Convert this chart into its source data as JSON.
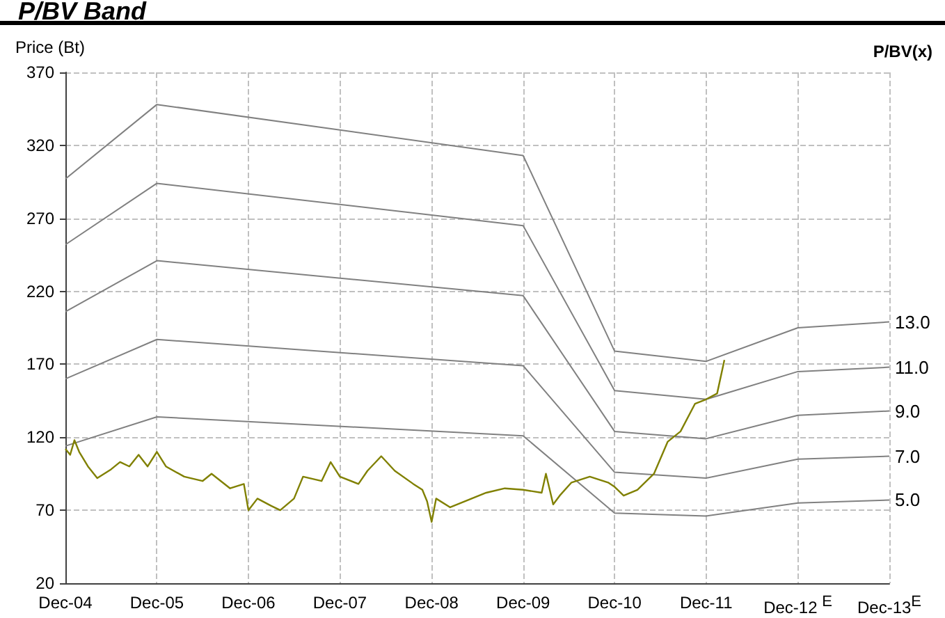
{
  "chart_data": {
    "type": "line",
    "title": "P/BV Band",
    "ylabel": "Price (Bt)",
    "legend_title": "P/BV(x)",
    "xlim": [
      "2004-12",
      "2013-12"
    ],
    "xticks": [
      {
        "value": "2004-12",
        "label": "Dec-04"
      },
      {
        "value": "2005-12",
        "label": "Dec-05"
      },
      {
        "value": "2006-12",
        "label": "Dec-06"
      },
      {
        "value": "2007-12",
        "label": "Dec-07"
      },
      {
        "value": "2008-12",
        "label": "Dec-08"
      },
      {
        "value": "2009-12",
        "label": "Dec-09"
      },
      {
        "value": "2010-12",
        "label": "Dec-10"
      },
      {
        "value": "2011-12",
        "label": "Dec-11"
      },
      {
        "value": "2012-12",
        "label": "Dec-12 $^{E}$"
      },
      {
        "value": "2013-12",
        "label": "Dec-13$^{E}$"
      }
    ],
    "ylim": [
      20,
      370
    ],
    "yticks": [
      20,
      70,
      120,
      170,
      220,
      270,
      320,
      370
    ],
    "grid": true,
    "marker": "none",
    "legend": false,
    "series": [
      {
        "name": "13.0",
        "color": "#808080",
        "x": [
          "2004-12",
          "2005-12",
          "2009-12",
          "2010-12",
          "2011-12",
          "2012-12",
          "2013-12"
        ],
        "values": [
          297,
          348,
          313,
          179,
          172,
          195,
          199
        ]
      },
      {
        "name": "11.0",
        "color": "#808080",
        "x": [
          "2004-12",
          "2005-12",
          "2009-12",
          "2010-12",
          "2011-12",
          "2012-12",
          "2013-12"
        ],
        "values": [
          252,
          294,
          265,
          152,
          146,
          165,
          168
        ]
      },
      {
        "name": "9.0",
        "color": "#808080",
        "x": [
          "2004-12",
          "2005-12",
          "2009-12",
          "2010-12",
          "2011-12",
          "2012-12",
          "2013-12"
        ],
        "values": [
          206,
          241,
          217,
          124,
          119,
          135,
          138
        ]
      },
      {
        "name": "7.0",
        "color": "#808080",
        "x": [
          "2004-12",
          "2005-12",
          "2009-12",
          "2010-12",
          "2011-12",
          "2012-12",
          "2013-12"
        ],
        "values": [
          160,
          187,
          169,
          96,
          92,
          105,
          107
        ]
      },
      {
        "name": "5.0",
        "color": "#808080",
        "x": [
          "2004-12",
          "2005-12",
          "2009-12",
          "2010-12",
          "2011-12",
          "2012-12",
          "2013-12"
        ],
        "values": [
          114,
          134,
          121,
          68,
          66,
          75,
          77
        ]
      },
      {
        "color": "#808000",
        "x": [
          "2004-12-01",
          "2004-12-20",
          "2005-01-06",
          "2005-01-25",
          "2005-03-01",
          "2005-04-07",
          "2005-06-01",
          "2005-07-07",
          "2005-08-13",
          "2005-09-19",
          "2005-10-25",
          "2005-12-01",
          "2006-01-06",
          "2006-03-20",
          "2006-06-01",
          "2006-07-07",
          "2006-09-19",
          "2006-11-13",
          "2006-12-01",
          "2007-01-06",
          "2007-03-02",
          "2007-04-07",
          "2007-06-01",
          "2007-07-07",
          "2007-09-19",
          "2007-10-25",
          "2007-12-01",
          "2008-02-13",
          "2008-03-20",
          "2008-05-14",
          "2008-07-07",
          "2008-09-19",
          "2008-10-25",
          "2008-11-13",
          "2008-12-01",
          "2008-12-19",
          "2009-02-13",
          "2009-04-26",
          "2009-07-07",
          "2009-09-19",
          "2009-12-01",
          "2010-02-13",
          "2010-03-02",
          "2010-03-31",
          "2010-04-26",
          "2010-06-12",
          "2010-08-24",
          "2010-11-05",
          "2010-12-01",
          "2011-01-06",
          "2011-03-02",
          "2011-05-07",
          "2011-07-01",
          "2011-08-21",
          "2011-10-18",
          "2011-12-01",
          "2012-01-14",
          "2012-02-12"
        ],
        "values": [
          112,
          108,
          118,
          110,
          100,
          92,
          98,
          103,
          100,
          108,
          100,
          110,
          100,
          93,
          90,
          95,
          85,
          88,
          70,
          78,
          73,
          70,
          78,
          93,
          90,
          103,
          93,
          88,
          97,
          107,
          97,
          88,
          84,
          76,
          62,
          78,
          72,
          77,
          82,
          85,
          84,
          82,
          95,
          74,
          80,
          89,
          93,
          89,
          86,
          80,
          84,
          95,
          117,
          124,
          143,
          146,
          150,
          173
        ]
      }
    ]
  }
}
